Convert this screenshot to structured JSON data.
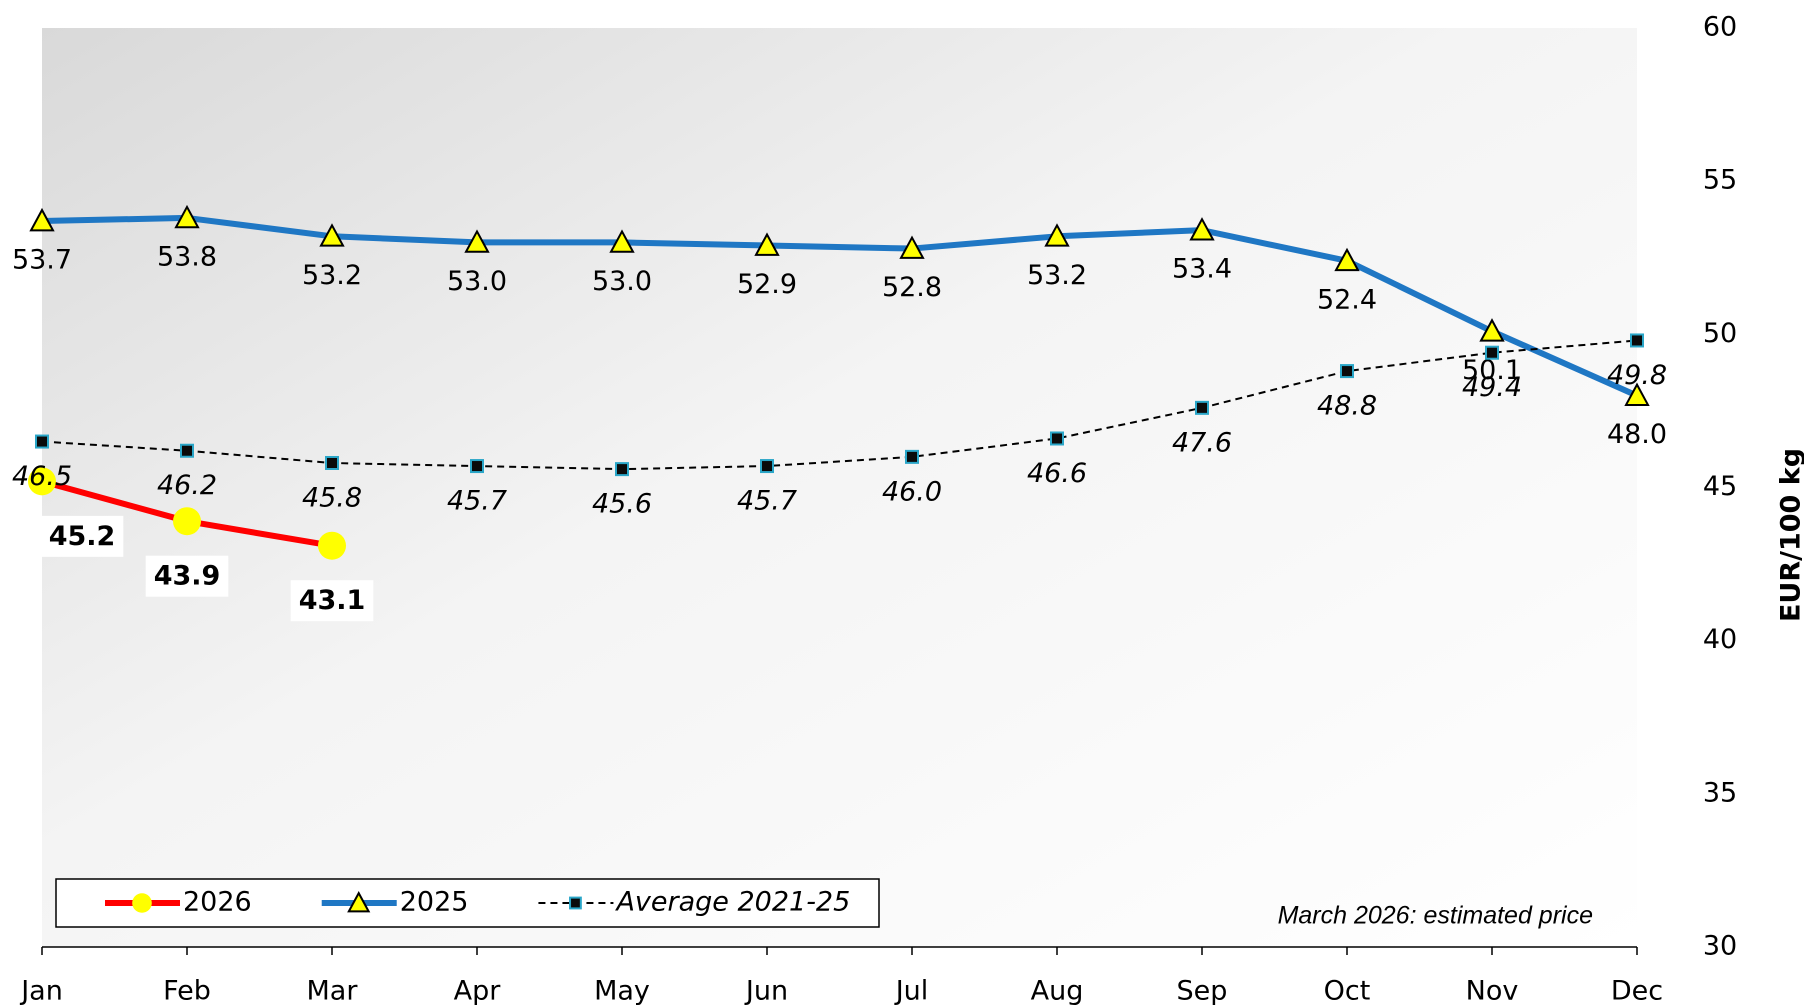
{
  "chart_data": {
    "type": "line",
    "categories": [
      "Jan",
      "Feb",
      "Mar",
      "Apr",
      "May",
      "Jun",
      "Jul",
      "Aug",
      "Sep",
      "Oct",
      "Nov",
      "Dec"
    ],
    "series": [
      {
        "name": "2026",
        "color": "#ff0000",
        "marker": "circle",
        "marker_color": "#ffff00",
        "dash": false,
        "label_style": "bold",
        "values": [
          45.2,
          43.9,
          43.1,
          null,
          null,
          null,
          null,
          null,
          null,
          null,
          null,
          null
        ],
        "value_labels": [
          "45.2",
          "43.9",
          "43.1",
          null,
          null,
          null,
          null,
          null,
          null,
          null,
          null,
          null
        ],
        "label_colors": [
          "#000000",
          "#000000",
          "#ff0000",
          null,
          null,
          null,
          null,
          null,
          null,
          null,
          null,
          null
        ]
      },
      {
        "name": "2025",
        "color": "#1f77c4",
        "marker": "triangle",
        "marker_color": "#ffff00",
        "dash": false,
        "label_style": "normal",
        "values": [
          53.7,
          53.8,
          53.2,
          53.0,
          53.0,
          52.9,
          52.8,
          53.2,
          53.4,
          52.4,
          50.1,
          48.0
        ],
        "value_labels": [
          "53.7",
          "53.8",
          "53.2",
          "53.0",
          "53.0",
          "52.9",
          "52.8",
          "53.2",
          "53.4",
          "52.4",
          "50.1",
          "48.0"
        ]
      },
      {
        "name": "Average 2021-25",
        "color": "#000000",
        "marker": "square",
        "marker_color": "#0a0a0a",
        "dash": true,
        "label_style": "italic",
        "values": [
          46.5,
          46.2,
          45.8,
          45.7,
          45.6,
          45.7,
          46.0,
          46.6,
          47.6,
          48.8,
          49.4,
          49.8
        ],
        "value_labels": [
          "46.5",
          "46.2",
          "45.8",
          "45.7",
          "45.6",
          "45.7",
          "46.0",
          "46.6",
          "47.6",
          "48.8",
          "49.4",
          "49.8"
        ]
      }
    ],
    "y_label": "EUR/100 kg",
    "ylim": [
      30,
      60
    ],
    "yticks": [
      30,
      35,
      40,
      45,
      50,
      55,
      60
    ],
    "y_axis_side": "right",
    "grid": false,
    "legend": "lower left",
    "annotation": {
      "text": "March 2026: estimated price",
      "color": "#ff0000"
    }
  }
}
